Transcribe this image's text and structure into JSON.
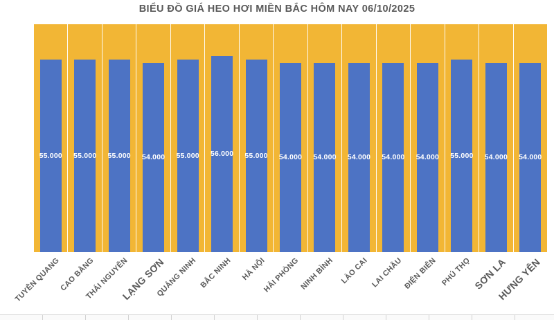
{
  "title": "BIỂU ĐỒ GIÁ HEO HƠI MIỀN BẮC HÔM NAY 06/10/2025",
  "colors": {
    "bar": "#4D73C4",
    "plot_background": "#F2B635",
    "title_text": "#595959",
    "axis_label_text": "#595959",
    "value_label_text": "#FFFFFF",
    "category_separator": "#FFFFFF",
    "sheet_gridline": "#D2D2D2"
  },
  "chart_data": {
    "type": "bar",
    "title": "BIỂU ĐỒ GIÁ HEO HƠI MIỀN BẮC HÔM NAY 06/10/2025",
    "categories": [
      "TUYÊN QUANG",
      "CAO BẰNG",
      "THÁI NGUYÊN",
      "LẠNG SƠN",
      "QUẢNG NINH",
      "BẮC NINH",
      "HÀ NỘI",
      "HẢI PHÒNG",
      "NINH BÌNH",
      "LÀO CAI",
      "LAI CHÂU",
      "ĐIỆN BIÊN",
      "PHÚ THỌ",
      "SƠN LA",
      "HƯNG YÊN"
    ],
    "values": [
      55000,
      55000,
      55000,
      54000,
      55000,
      56000,
      55000,
      54000,
      54000,
      54000,
      54000,
      54000,
      55000,
      54000,
      54000
    ],
    "value_labels": [
      "55.000",
      "55.000",
      "55.000",
      "54.000",
      "55.000",
      "56.000",
      "55.000",
      "54.000",
      "54.000",
      "54.000",
      "54.000",
      "54.000",
      "55.000",
      "54.000",
      "54.000"
    ],
    "xlabel": "",
    "ylabel": "",
    "ylim": [
      0,
      65000
    ],
    "grid": "white vertical category separators on yellow plot background",
    "legend": "none",
    "emphasized_category_indexes": [
      3,
      13,
      14
    ]
  }
}
